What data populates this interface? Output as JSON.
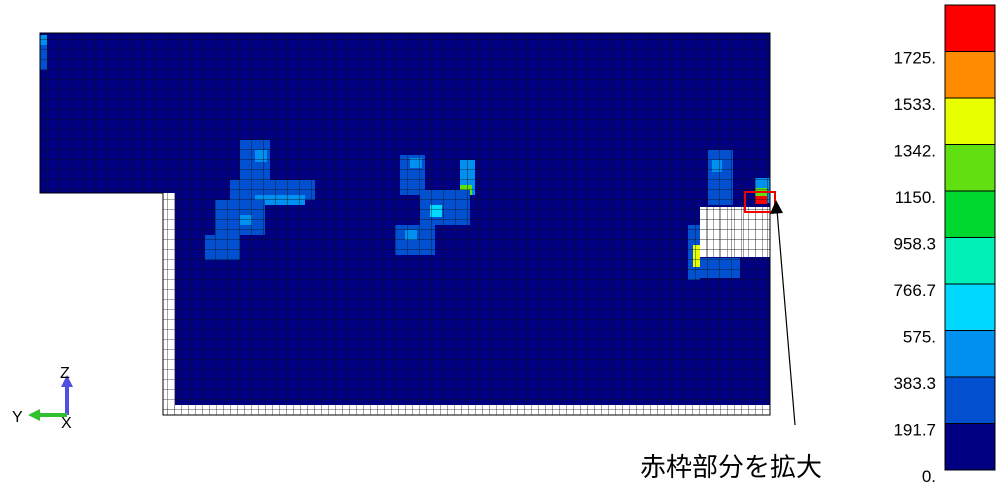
{
  "legend": {
    "labels": [
      "1725.",
      "1533.",
      "1342.",
      "1150.",
      "958.3",
      "766.7",
      "575.",
      "383.3",
      "191.7",
      "0."
    ],
    "colors": [
      "#ff0000",
      "#ff8c00",
      "#e8ff00",
      "#60e010",
      "#00d830",
      "#00f0b8",
      "#00d8ff",
      "#0090f0",
      "#0050d0",
      "#000080"
    ]
  },
  "triad": {
    "z": "Z",
    "y": "Y",
    "x": "X"
  },
  "annotation": "赤枠部分を拡大"
}
